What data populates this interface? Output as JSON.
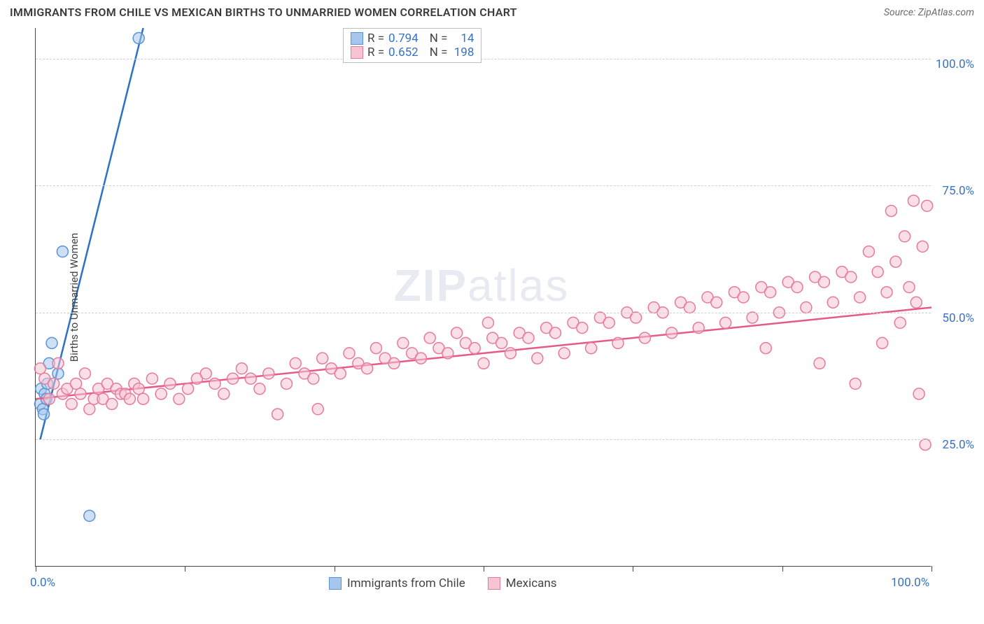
{
  "title": "IMMIGRANTS FROM CHILE VS MEXICAN BIRTHS TO UNMARRIED WOMEN CORRELATION CHART",
  "source": "Source: ZipAtlas.com",
  "ylabel": "Births to Unmarried Women",
  "watermark_bold": "ZIP",
  "watermark_rest": "atlas",
  "chart": {
    "type": "scatter",
    "background_color": "#ffffff",
    "grid_color": "#d0d0d0",
    "axis_color": "#444444",
    "marker_radius": 8,
    "marker_stroke_width": 1.5,
    "line_width": 2.5,
    "x_range": [
      0,
      100
    ],
    "y_range": [
      0,
      106
    ],
    "y_gridlines": [
      25,
      50,
      75,
      100
    ],
    "y_labels": [
      "25.0%",
      "50.0%",
      "75.0%",
      "100.0%"
    ],
    "x_ticks": [
      0,
      16.67,
      33.33,
      50,
      66.67,
      83.33,
      100
    ],
    "x_labels": {
      "0": "0.0%",
      "100": "100.0%"
    },
    "series": [
      {
        "id": "chile",
        "label": "Immigrants from Chile",
        "fill": "#a6c6ed",
        "stroke": "#5a93d4",
        "line_color": "#2b71c7",
        "fit_line": {
          "x1": 0.5,
          "y1": 25,
          "x2": 12,
          "y2": 106
        },
        "points": [
          [
            0.5,
            32
          ],
          [
            0.6,
            35
          ],
          [
            0.8,
            31
          ],
          [
            0.9,
            30
          ],
          [
            1.0,
            34
          ],
          [
            1.2,
            33
          ],
          [
            1.3,
            36
          ],
          [
            1.5,
            40
          ],
          [
            1.8,
            44
          ],
          [
            2.5,
            38
          ],
          [
            3.0,
            62
          ],
          [
            6.0,
            10
          ],
          [
            11.5,
            104
          ]
        ]
      },
      {
        "id": "mexicans",
        "label": "Mexicans",
        "fill": "#f7c4d2",
        "stroke": "#e77a9b",
        "line_color": "#e65a87",
        "fit_line": {
          "x1": 0,
          "y1": 33,
          "x2": 100,
          "y2": 51
        },
        "points": [
          [
            0.5,
            39
          ],
          [
            1,
            37
          ],
          [
            1.5,
            33
          ],
          [
            2,
            36
          ],
          [
            2.5,
            40
          ],
          [
            3,
            34
          ],
          [
            3.5,
            35
          ],
          [
            4,
            32
          ],
          [
            4.5,
            36
          ],
          [
            5,
            34
          ],
          [
            5.5,
            38
          ],
          [
            6,
            31
          ],
          [
            6.5,
            33
          ],
          [
            7,
            35
          ],
          [
            7.5,
            33
          ],
          [
            8,
            36
          ],
          [
            8.5,
            32
          ],
          [
            9,
            35
          ],
          [
            9.5,
            34
          ],
          [
            10,
            34
          ],
          [
            10.5,
            33
          ],
          [
            11,
            36
          ],
          [
            11.5,
            35
          ],
          [
            12,
            33
          ],
          [
            13,
            37
          ],
          [
            14,
            34
          ],
          [
            15,
            36
          ],
          [
            16,
            33
          ],
          [
            17,
            35
          ],
          [
            18,
            37
          ],
          [
            19,
            38
          ],
          [
            20,
            36
          ],
          [
            21,
            34
          ],
          [
            22,
            37
          ],
          [
            23,
            39
          ],
          [
            24,
            37
          ],
          [
            25,
            35
          ],
          [
            26,
            38
          ],
          [
            27,
            30
          ],
          [
            28,
            36
          ],
          [
            29,
            40
          ],
          [
            30,
            38
          ],
          [
            31,
            37
          ],
          [
            31.5,
            31
          ],
          [
            32,
            41
          ],
          [
            33,
            39
          ],
          [
            34,
            38
          ],
          [
            35,
            42
          ],
          [
            36,
            40
          ],
          [
            37,
            39
          ],
          [
            38,
            43
          ],
          [
            39,
            41
          ],
          [
            40,
            40
          ],
          [
            41,
            44
          ],
          [
            42,
            42
          ],
          [
            43,
            41
          ],
          [
            44,
            45
          ],
          [
            45,
            43
          ],
          [
            46,
            42
          ],
          [
            47,
            46
          ],
          [
            48,
            44
          ],
          [
            49,
            43
          ],
          [
            50,
            40
          ],
          [
            50.5,
            48
          ],
          [
            51,
            45
          ],
          [
            52,
            44
          ],
          [
            53,
            42
          ],
          [
            54,
            46
          ],
          [
            55,
            45
          ],
          [
            56,
            41
          ],
          [
            57,
            47
          ],
          [
            58,
            46
          ],
          [
            59,
            42
          ],
          [
            60,
            48
          ],
          [
            61,
            47
          ],
          [
            62,
            43
          ],
          [
            63,
            49
          ],
          [
            64,
            48
          ],
          [
            65,
            44
          ],
          [
            66,
            50
          ],
          [
            67,
            49
          ],
          [
            68,
            45
          ],
          [
            69,
            51
          ],
          [
            70,
            50
          ],
          [
            71,
            46
          ],
          [
            72,
            52
          ],
          [
            73,
            51
          ],
          [
            74,
            47
          ],
          [
            75,
            53
          ],
          [
            76,
            52
          ],
          [
            77,
            48
          ],
          [
            78,
            54
          ],
          [
            79,
            53
          ],
          [
            80,
            49
          ],
          [
            81,
            55
          ],
          [
            81.5,
            43
          ],
          [
            82,
            54
          ],
          [
            83,
            50
          ],
          [
            84,
            56
          ],
          [
            85,
            55
          ],
          [
            86,
            51
          ],
          [
            87,
            57
          ],
          [
            87.5,
            40
          ],
          [
            88,
            56
          ],
          [
            89,
            52
          ],
          [
            90,
            58
          ],
          [
            91,
            57
          ],
          [
            91.5,
            36
          ],
          [
            92,
            53
          ],
          [
            93,
            62
          ],
          [
            94,
            58
          ],
          [
            94.5,
            44
          ],
          [
            95,
            54
          ],
          [
            95.5,
            70
          ],
          [
            96,
            60
          ],
          [
            96.5,
            48
          ],
          [
            97,
            65
          ],
          [
            97.5,
            55
          ],
          [
            98,
            72
          ],
          [
            98.3,
            52
          ],
          [
            98.6,
            34
          ],
          [
            99,
            63
          ],
          [
            99.3,
            24
          ],
          [
            99.5,
            71
          ]
        ]
      }
    ]
  },
  "legend_top": [
    {
      "series": "chile",
      "R_label": "R =",
      "R": "0.794",
      "N_label": "N =",
      "N": "14"
    },
    {
      "series": "mexicans",
      "R_label": "R =",
      "R": "0.652",
      "N_label": "N =",
      "N": "198"
    }
  ],
  "legend_bottom": [
    {
      "series": "chile",
      "label": "Immigrants from Chile"
    },
    {
      "series": "mexicans",
      "label": "Mexicans"
    }
  ]
}
